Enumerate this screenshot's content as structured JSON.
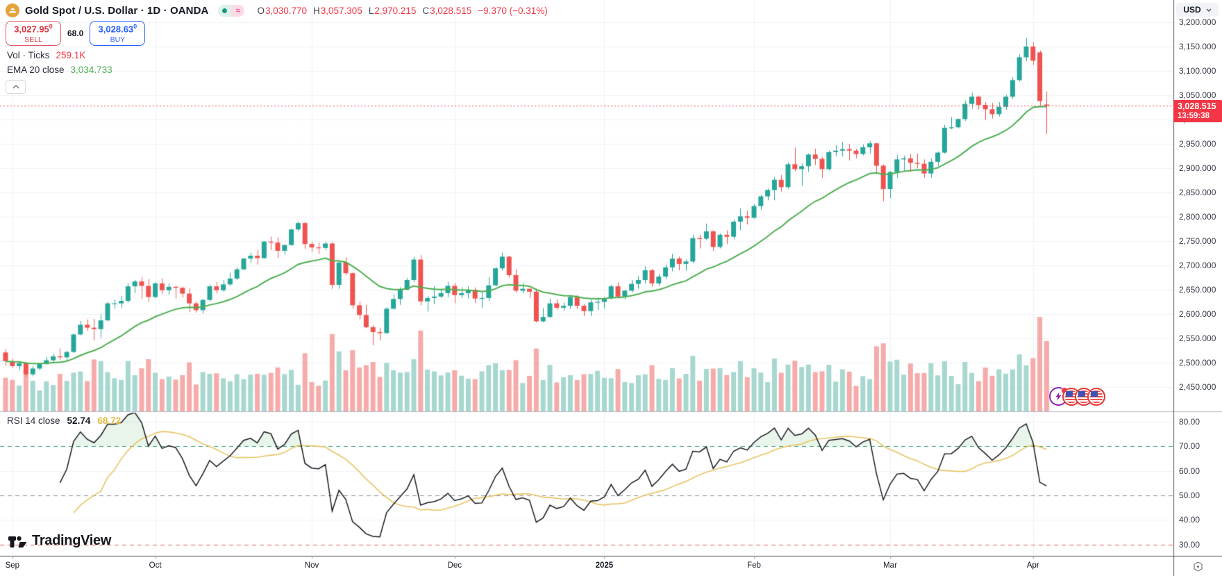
{
  "header": {
    "symbol_title": "Gold Spot / U.S. Dollar · 1D · OANDA",
    "toggle_approx": "≈",
    "ohlc": {
      "o_label": "O",
      "o": "3,030.770",
      "h_label": "H",
      "h": "3,057.305",
      "l_label": "L",
      "l": "2,970.215",
      "c_label": "C",
      "c": "3,028.515",
      "change": "−9.370 (−0.31%)"
    },
    "sell": {
      "price": "3,027.95",
      "sup": "0",
      "label": "SELL"
    },
    "spread": "68.0",
    "buy": {
      "price": "3,028.63",
      "sup": "0",
      "label": "BUY"
    },
    "vol": {
      "label": "Vol · Ticks",
      "value": "259.1K"
    },
    "ema": {
      "label": "EMA 20 close",
      "value": "3,034.733"
    }
  },
  "rsi_legend": {
    "label": "RSI 14 close",
    "value": "52.74",
    "signal": "68.72"
  },
  "price_axis": {
    "currency": "USD",
    "labels": [
      "3,200.000",
      "3,150.000",
      "3,100.000",
      "3,050.000",
      "3,000.000",
      "2,950.000",
      "2,900.000",
      "2,850.000",
      "2,800.000",
      "2,750.000",
      "2,700.000",
      "2,650.000",
      "2,600.000",
      "2,550.000",
      "2,500.000",
      "2,450.000"
    ],
    "last_price": "3,028.515",
    "countdown": "13:59:38"
  },
  "rsi_axis": {
    "labels": [
      "80.00",
      "70.00",
      "60.00",
      "50.00",
      "40.00",
      "30.00"
    ]
  },
  "time_axis": {
    "labels": [
      {
        "text": "Sep",
        "index": 1
      },
      {
        "text": "Oct",
        "index": 22
      },
      {
        "text": "Nov",
        "index": 45
      },
      {
        "text": "Dec",
        "index": 66
      },
      {
        "text": "2025",
        "index": 88,
        "year": true
      },
      {
        "text": "Feb",
        "index": 110
      },
      {
        "text": "Mar",
        "index": 130
      },
      {
        "text": "Apr",
        "index": 151
      }
    ]
  },
  "watermark": "TradingView",
  "colors": {
    "up": "#26a69a",
    "down": "#ef5350",
    "vol_up": "#a7d8d0",
    "vol_down": "#f6abaa",
    "ema": "#4caf50",
    "rsi": "#17191f",
    "rsi_signal": "#e8c464",
    "grid": "#eff2f6",
    "band70": "#2e9e6f",
    "band50": "#8b8f98",
    "band30": "#e25d5d",
    "last": "#f23645",
    "fill70": "rgba(76,175,80,0.12)",
    "pane_sep": "#b5b8bf",
    "axis_sep": "#565a62"
  },
  "chart_data": {
    "type": "candlestick",
    "symbol": "Gold Spot / U.S. Dollar (XAUUSD)",
    "interval": "1D",
    "ema_period": 20,
    "rsi_period": 14,
    "price_grid": [
      3200,
      3150,
      3100,
      3050,
      3000,
      2950,
      2900,
      2850,
      2800,
      2750,
      2700,
      2650,
      2600,
      2550,
      2500,
      2450
    ],
    "rsi_grid": [
      80,
      70,
      60,
      50,
      40,
      30
    ],
    "last_close": 3028.515,
    "candles": [
      [
        2521,
        2528,
        2494,
        2503
      ],
      [
        2503,
        2508,
        2489,
        2493
      ],
      [
        2493,
        2503,
        2485,
        2499
      ],
      [
        2499,
        2502,
        2471,
        2476
      ],
      [
        2476,
        2493,
        2472,
        2488
      ],
      [
        2488,
        2498,
        2484,
        2497
      ],
      [
        2497,
        2512,
        2496,
        2505
      ],
      [
        2505,
        2518,
        2500,
        2513
      ],
      [
        2513,
        2529,
        2506,
        2511
      ],
      [
        2511,
        2524,
        2504,
        2522
      ],
      [
        2522,
        2560,
        2520,
        2558
      ],
      [
        2558,
        2586,
        2556,
        2578
      ],
      [
        2578,
        2589,
        2566,
        2572
      ],
      [
        2572,
        2590,
        2546,
        2569
      ],
      [
        2569,
        2600,
        2551,
        2587
      ],
      [
        2587,
        2625,
        2585,
        2622
      ],
      [
        2622,
        2630,
        2611,
        2622
      ],
      [
        2622,
        2637,
        2613,
        2627
      ],
      [
        2627,
        2664,
        2623,
        2657
      ],
      [
        2657,
        2670,
        2643,
        2667
      ],
      [
        2667,
        2676,
        2631,
        2658
      ],
      [
        2658,
        2672,
        2625,
        2635
      ],
      [
        2635,
        2666,
        2632,
        2663
      ],
      [
        2663,
        2673,
        2641,
        2649
      ],
      [
        2649,
        2663,
        2639,
        2656
      ],
      [
        2656,
        2659,
        2632,
        2654
      ],
      [
        2654,
        2656,
        2634,
        2642
      ],
      [
        2642,
        2653,
        2604,
        2622
      ],
      [
        2622,
        2626,
        2603,
        2608
      ],
      [
        2608,
        2631,
        2601,
        2629
      ],
      [
        2629,
        2661,
        2626,
        2657
      ],
      [
        2657,
        2666,
        2642,
        2649
      ],
      [
        2649,
        2670,
        2646,
        2661
      ],
      [
        2661,
        2685,
        2658,
        2673
      ],
      [
        2673,
        2696,
        2670,
        2692
      ],
      [
        2692,
        2716,
        2690,
        2714
      ],
      [
        2714,
        2726,
        2705,
        2720
      ],
      [
        2720,
        2732,
        2702,
        2715
      ],
      [
        2715,
        2750,
        2714,
        2749
      ],
      [
        2749,
        2759,
        2732,
        2747
      ],
      [
        2747,
        2758,
        2715,
        2730
      ],
      [
        2730,
        2743,
        2722,
        2742
      ],
      [
        2742,
        2775,
        2740,
        2774
      ],
      [
        2774,
        2790,
        2770,
        2787
      ],
      [
        2787,
        2790,
        2734,
        2744
      ],
      [
        2744,
        2748,
        2728,
        2737
      ],
      [
        2737,
        2746,
        2724,
        2736
      ],
      [
        2736,
        2749,
        2731,
        2745
      ],
      [
        2745,
        2748,
        2652,
        2660
      ],
      [
        2660,
        2710,
        2652,
        2706
      ],
      [
        2706,
        2717,
        2680,
        2684
      ],
      [
        2684,
        2686,
        2611,
        2618
      ],
      [
        2618,
        2626,
        2589,
        2598
      ],
      [
        2598,
        2619,
        2571,
        2573
      ],
      [
        2573,
        2577,
        2536,
        2563
      ],
      [
        2563,
        2572,
        2546,
        2561
      ],
      [
        2561,
        2614,
        2559,
        2611
      ],
      [
        2611,
        2641,
        2609,
        2631
      ],
      [
        2631,
        2655,
        2619,
        2650
      ],
      [
        2650,
        2674,
        2649,
        2670
      ],
      [
        2670,
        2718,
        2666,
        2712
      ],
      [
        2712,
        2721,
        2618,
        2626
      ],
      [
        2626,
        2637,
        2605,
        2633
      ],
      [
        2633,
        2657,
        2620,
        2636
      ],
      [
        2636,
        2652,
        2633,
        2643
      ],
      [
        2643,
        2666,
        2635,
        2658
      ],
      [
        2658,
        2664,
        2622,
        2639
      ],
      [
        2639,
        2655,
        2633,
        2643
      ],
      [
        2643,
        2657,
        2632,
        2650
      ],
      [
        2650,
        2655,
        2623,
        2632
      ],
      [
        2632,
        2645,
        2613,
        2633
      ],
      [
        2633,
        2676,
        2627,
        2659
      ],
      [
        2659,
        2697,
        2657,
        2694
      ],
      [
        2694,
        2726,
        2689,
        2718
      ],
      [
        2718,
        2720,
        2675,
        2680
      ],
      [
        2680,
        2692,
        2644,
        2648
      ],
      [
        2648,
        2664,
        2643,
        2652
      ],
      [
        2652,
        2653,
        2633,
        2646
      ],
      [
        2646,
        2652,
        2583,
        2585
      ],
      [
        2585,
        2612,
        2583,
        2594
      ],
      [
        2594,
        2632,
        2592,
        2622
      ],
      [
        2622,
        2630,
        2609,
        2613
      ],
      [
        2613,
        2624,
        2607,
        2617
      ],
      [
        2617,
        2639,
        2611,
        2635
      ],
      [
        2635,
        2639,
        2611,
        2617
      ],
      [
        2617,
        2621,
        2596,
        2606
      ],
      [
        2606,
        2629,
        2596,
        2624
      ],
      [
        2624,
        2634,
        2608,
        2625
      ],
      [
        2625,
        2635,
        2612,
        2632
      ],
      [
        2632,
        2660,
        2630,
        2657
      ],
      [
        2657,
        2665,
        2633,
        2636
      ],
      [
        2636,
        2650,
        2630,
        2648
      ],
      [
        2648,
        2670,
        2644,
        2662
      ],
      [
        2662,
        2678,
        2652,
        2670
      ],
      [
        2670,
        2698,
        2663,
        2690
      ],
      [
        2690,
        2693,
        2656,
        2663
      ],
      [
        2663,
        2682,
        2658,
        2677
      ],
      [
        2677,
        2702,
        2672,
        2696
      ],
      [
        2696,
        2724,
        2688,
        2714
      ],
      [
        2714,
        2718,
        2690,
        2703
      ],
      [
        2703,
        2712,
        2689,
        2708
      ],
      [
        2708,
        2763,
        2705,
        2756
      ],
      [
        2756,
        2763,
        2735,
        2755
      ],
      [
        2755,
        2786,
        2752,
        2770
      ],
      [
        2770,
        2772,
        2730,
        2738
      ],
      [
        2738,
        2766,
        2735,
        2763
      ],
      [
        2763,
        2772,
        2744,
        2759
      ],
      [
        2759,
        2794,
        2754,
        2790
      ],
      [
        2790,
        2817,
        2772,
        2801
      ],
      [
        2801,
        2812,
        2784,
        2798
      ],
      [
        2798,
        2826,
        2796,
        2822
      ],
      [
        2822,
        2845,
        2814,
        2842
      ],
      [
        2842,
        2858,
        2834,
        2855
      ],
      [
        2855,
        2882,
        2834,
        2876
      ],
      [
        2876,
        2886,
        2852,
        2861
      ],
      [
        2861,
        2912,
        2858,
        2908
      ],
      [
        2908,
        2942,
        2894,
        2898
      ],
      [
        2898,
        2910,
        2864,
        2904
      ],
      [
        2904,
        2930,
        2892,
        2928
      ],
      [
        2928,
        2940,
        2906,
        2919
      ],
      [
        2919,
        2923,
        2880,
        2898
      ],
      [
        2898,
        2936,
        2895,
        2933
      ],
      [
        2933,
        2947,
        2924,
        2936
      ],
      [
        2936,
        2954,
        2924,
        2939
      ],
      [
        2939,
        2950,
        2916,
        2936
      ],
      [
        2936,
        2940,
        2920,
        2929
      ],
      [
        2929,
        2949,
        2926,
        2943
      ],
      [
        2943,
        2956,
        2930,
        2951
      ],
      [
        2951,
        2952,
        2888,
        2905
      ],
      [
        2905,
        2908,
        2832,
        2857
      ],
      [
        2857,
        2894,
        2838,
        2892
      ],
      [
        2892,
        2927,
        2880,
        2918
      ],
      [
        2918,
        2926,
        2894,
        2920
      ],
      [
        2920,
        2929,
        2892,
        2911
      ],
      [
        2911,
        2930,
        2900,
        2909
      ],
      [
        2909,
        2918,
        2880,
        2889
      ],
      [
        2889,
        2921,
        2880,
        2913
      ],
      [
        2913,
        2934,
        2904,
        2932
      ],
      [
        2932,
        2989,
        2930,
        2983
      ],
      [
        2983,
        3005,
        2980,
        2984
      ],
      [
        2984,
        3002,
        2982,
        3001
      ],
      [
        3001,
        3039,
        2997,
        3032
      ],
      [
        3032,
        3055,
        3022,
        3047
      ],
      [
        3047,
        3049,
        3021,
        3030
      ],
      [
        3030,
        3036,
        2999,
        3021
      ],
      [
        3021,
        3034,
        3002,
        3011
      ],
      [
        3011,
        3036,
        3006,
        3026
      ],
      [
        3026,
        3051,
        3020,
        3047
      ],
      [
        3047,
        3087,
        3042,
        3081
      ],
      [
        3081,
        3134,
        3078,
        3128
      ],
      [
        3128,
        3167,
        3120,
        3150
      ],
      [
        3150,
        3158,
        3112,
        3121
      ],
      [
        3138,
        3142,
        3026,
        3038
      ],
      [
        3030.77,
        3057.305,
        2970.215,
        3028.515
      ]
    ]
  }
}
